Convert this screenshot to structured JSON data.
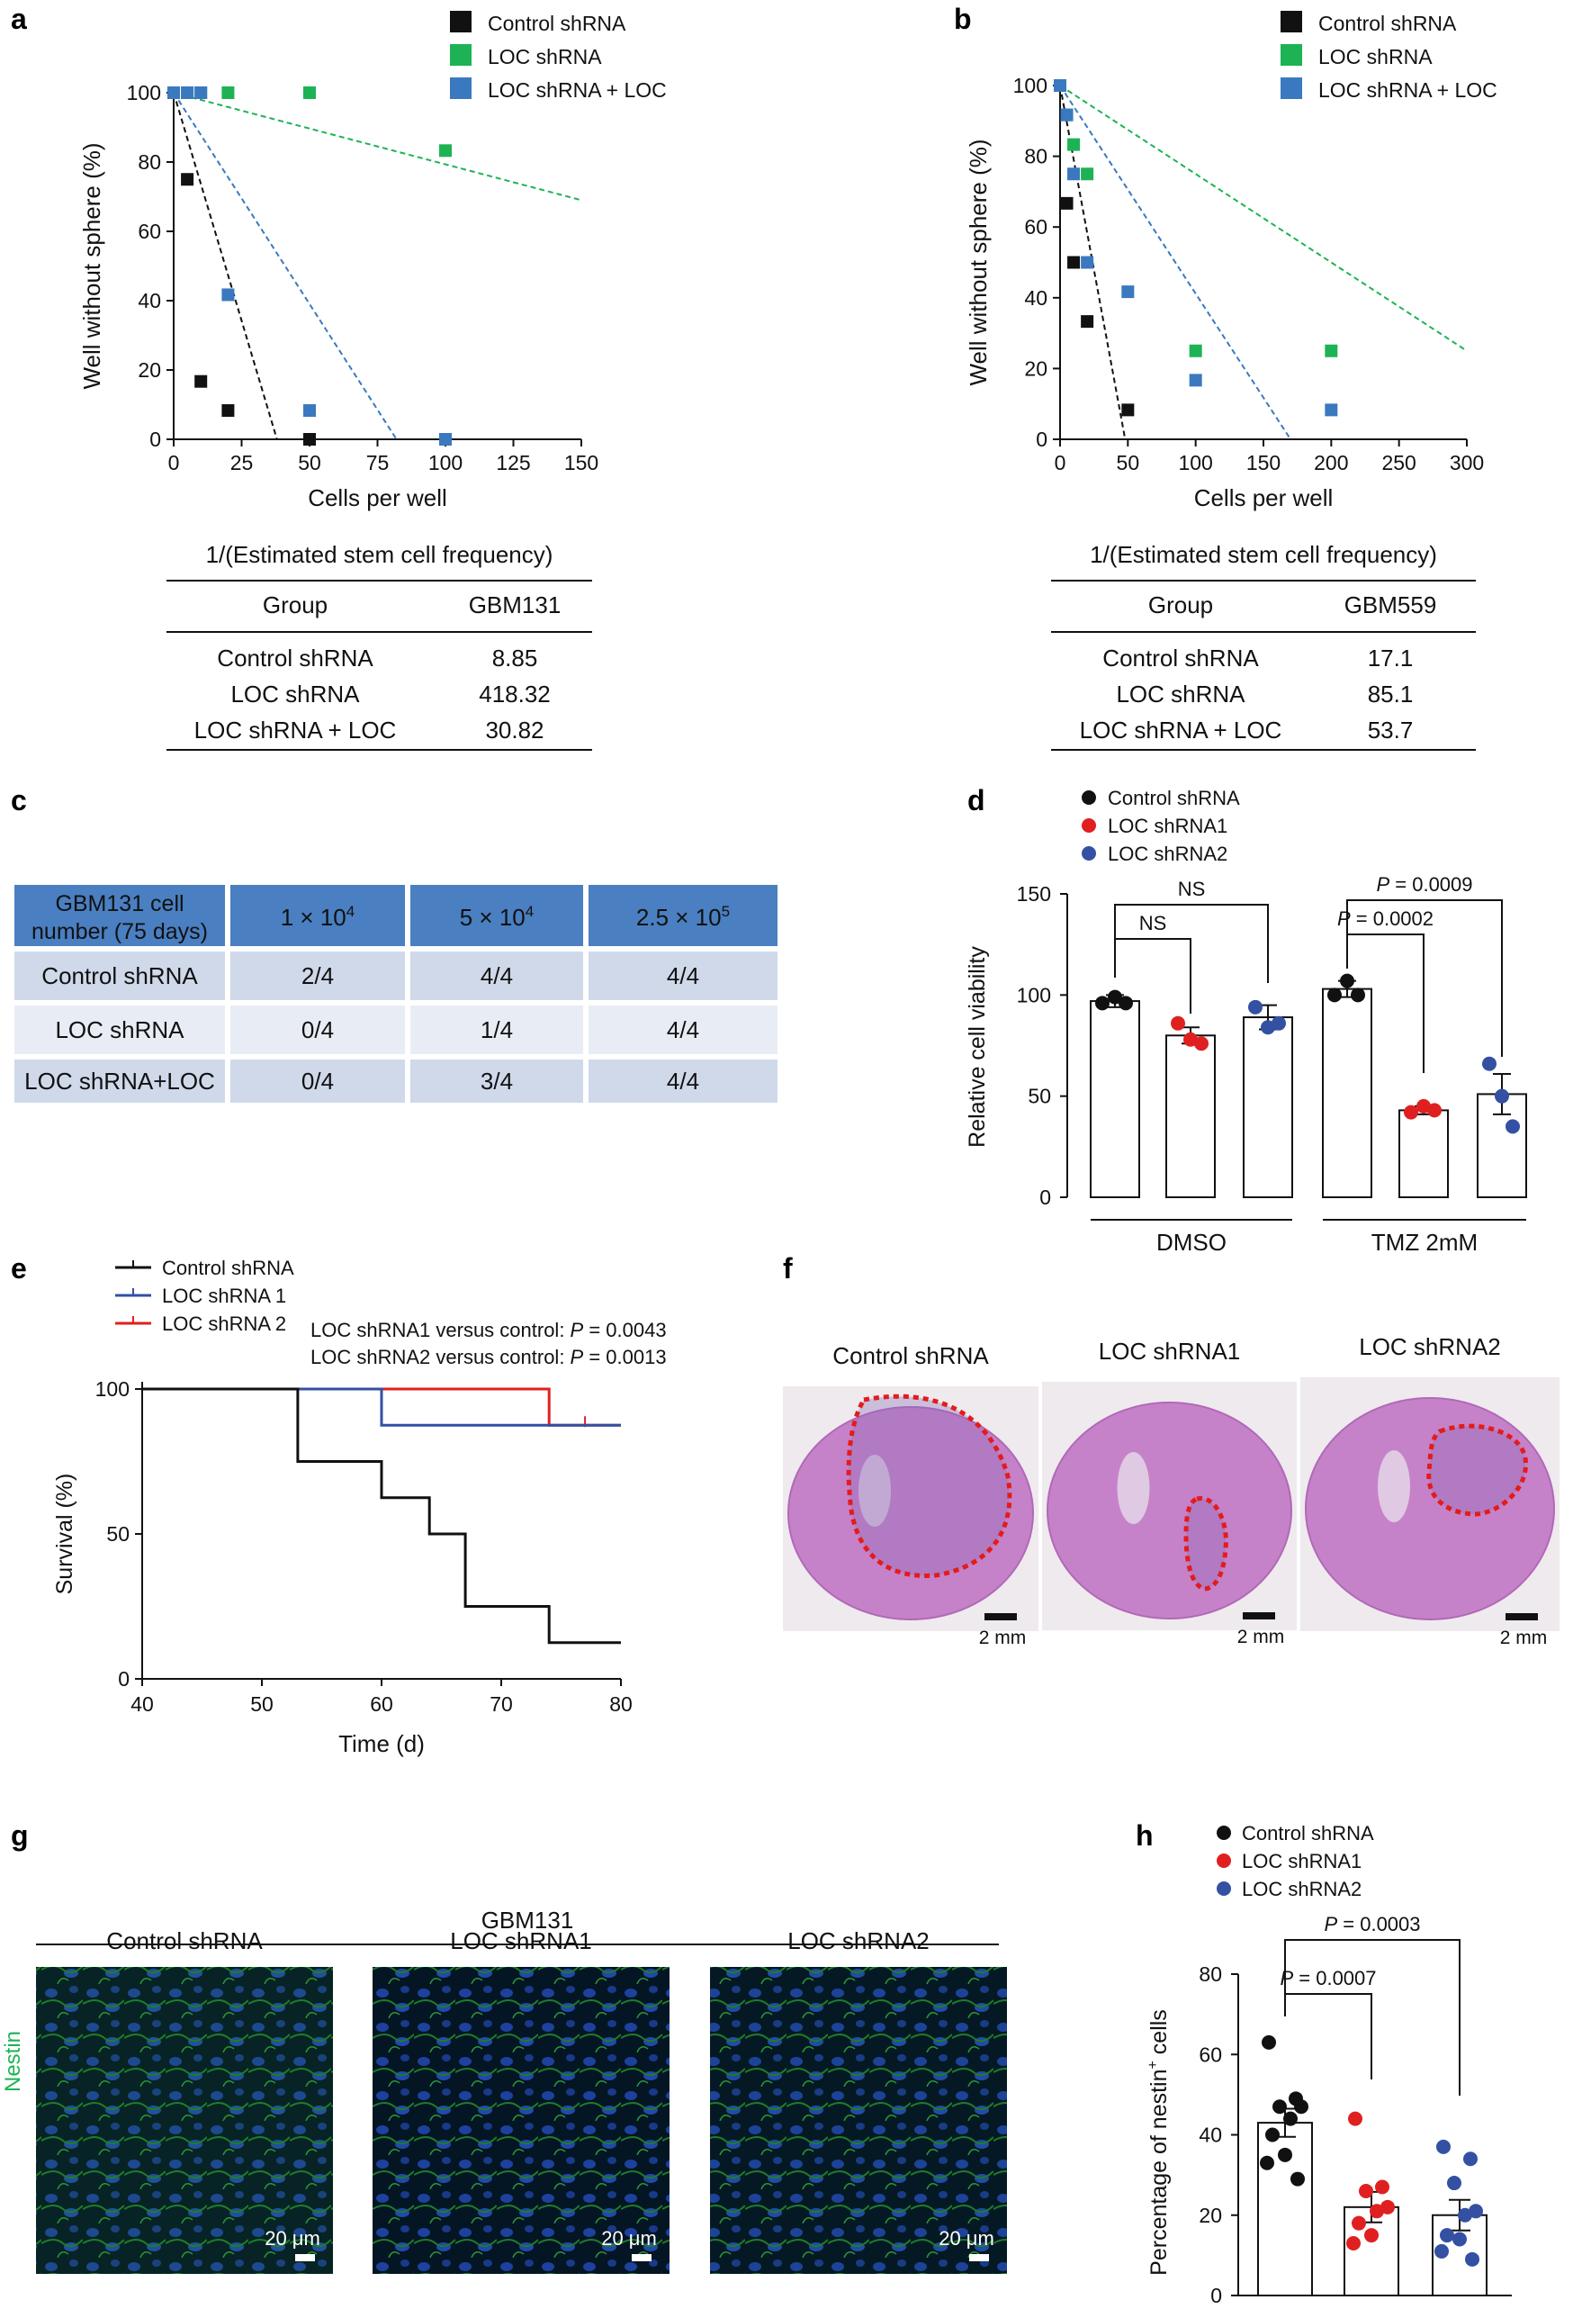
{
  "colors": {
    "black": "#111111",
    "green": "#1db354",
    "blue": "#3a79bf",
    "red": "#e02020",
    "navy": "#3350a3",
    "table_header": "#4a7fc1",
    "table_row_dark": "#cfd9ea",
    "table_row_light": "#e8edf5",
    "hist_fill": "#c874b8",
    "tissue": "#c682c8"
  },
  "panel_labels": {
    "a": "a",
    "b": "b",
    "c": "c",
    "d": "d",
    "e": "e",
    "f": "f",
    "g": "g",
    "h": "h"
  },
  "panel_a": {
    "chart_data": {
      "type": "scatter",
      "xlabel": "Cells per well",
      "ylabel": "Well without sphere (%)",
      "xlim": [
        0,
        150
      ],
      "ylim": [
        0,
        100
      ],
      "xticks": [
        0,
        25,
        50,
        75,
        100,
        125,
        150
      ],
      "yticks": [
        0,
        20,
        40,
        60,
        80,
        100
      ],
      "series": [
        {
          "name": "Control shRNA",
          "color": "#111111",
          "points": [
            [
              0,
              100
            ],
            [
              5,
              75
            ],
            [
              10,
              16.7
            ],
            [
              20,
              8.3
            ],
            [
              50,
              0
            ]
          ],
          "fit": [
            [
              0,
              100
            ],
            [
              38,
              0
            ]
          ]
        },
        {
          "name": "LOC shRNA",
          "color": "#1db354",
          "points": [
            [
              0,
              100
            ],
            [
              5,
              100
            ],
            [
              10,
              100
            ],
            [
              20,
              100
            ],
            [
              50,
              100
            ],
            [
              100,
              83.3
            ]
          ],
          "fit": [
            [
              0,
              100
            ],
            [
              150,
              69
            ]
          ]
        },
        {
          "name": "LOC shRNA + LOC",
          "color": "#3a79bf",
          "points": [
            [
              0,
              100
            ],
            [
              5,
              100
            ],
            [
              10,
              100
            ],
            [
              20,
              41.7
            ],
            [
              50,
              8.3
            ],
            [
              100,
              0
            ]
          ],
          "fit": [
            [
              0,
              100
            ],
            [
              82,
              0
            ]
          ]
        }
      ]
    },
    "table": {
      "title": "1/(Estimated stem cell frequency)",
      "headers": [
        "Group",
        "GBM131"
      ],
      "rows": [
        [
          "Control shRNA",
          "8.85"
        ],
        [
          "LOC shRNA",
          "418.32"
        ],
        [
          "LOC shRNA + LOC",
          "30.82"
        ]
      ]
    }
  },
  "panel_b": {
    "chart_data": {
      "type": "scatter",
      "xlabel": "Cells per well",
      "ylabel": "Well without sphere (%)",
      "xlim": [
        0,
        300
      ],
      "ylim": [
        0,
        100
      ],
      "xticks": [
        0,
        50,
        100,
        150,
        200,
        250,
        300
      ],
      "yticks": [
        0,
        20,
        40,
        60,
        80,
        100
      ],
      "series": [
        {
          "name": "Control shRNA",
          "color": "#111111",
          "points": [
            [
              0,
              100
            ],
            [
              5,
              66.7
            ],
            [
              10,
              50
            ],
            [
              20,
              33.3
            ],
            [
              50,
              8.3
            ]
          ],
          "fit": [
            [
              0,
              100
            ],
            [
              48,
              0
            ]
          ]
        },
        {
          "name": "LOC shRNA",
          "color": "#1db354",
          "points": [
            [
              0,
              100
            ],
            [
              5,
              91.7
            ],
            [
              10,
              83.3
            ],
            [
              20,
              75
            ],
            [
              100,
              25
            ],
            [
              200,
              25
            ]
          ],
          "fit": [
            [
              0,
              100
            ],
            [
              300,
              25
            ]
          ]
        },
        {
          "name": "LOC shRNA + LOC",
          "color": "#3a79bf",
          "points": [
            [
              0,
              100
            ],
            [
              5,
              91.7
            ],
            [
              10,
              75
            ],
            [
              20,
              50
            ],
            [
              50,
              41.7
            ],
            [
              100,
              16.7
            ],
            [
              200,
              8.3
            ]
          ],
          "fit": [
            [
              0,
              100
            ],
            [
              170,
              0
            ]
          ]
        }
      ]
    },
    "table": {
      "title": "1/(Estimated stem cell frequency)",
      "headers": [
        "Group",
        "GBM559"
      ],
      "rows": [
        [
          "Control shRNA",
          "17.1"
        ],
        [
          "LOC shRNA",
          "85.1"
        ],
        [
          "LOC shRNA + LOC",
          "53.7"
        ]
      ]
    }
  },
  "panel_c": {
    "header_line1": "GBM131 cell",
    "header_line2": "number (75 days)",
    "columns": [
      {
        "mant": "1 × 10",
        "exp": "4"
      },
      {
        "mant": "5 × 10",
        "exp": "4"
      },
      {
        "mant": "2.5 × 10",
        "exp": "5"
      }
    ],
    "rows": [
      {
        "label": "Control shRNA",
        "values": [
          "2/4",
          "4/4",
          "4/4"
        ]
      },
      {
        "label": "LOC shRNA",
        "values": [
          "0/4",
          "1/4",
          "4/4"
        ]
      },
      {
        "label": "LOC shRNA+LOC",
        "values": [
          "0/4",
          "3/4",
          "4/4"
        ]
      }
    ]
  },
  "panel_d": {
    "chart_data": {
      "type": "bar",
      "ylabel": "Relative cell viability",
      "ylim": [
        0,
        150
      ],
      "yticks": [
        0,
        50,
        100,
        150
      ],
      "groups": [
        "DMSO",
        "TMZ 2mM"
      ],
      "series": [
        {
          "name": "Control shRNA",
          "color": "#111111",
          "values": [
            97,
            103
          ],
          "errors": [
            3,
            4
          ],
          "points": [
            [
              96,
              99,
              96
            ],
            [
              100,
              107,
              100
            ]
          ]
        },
        {
          "name": "LOC shRNA1",
          "color": "#e02020",
          "values": [
            80,
            43
          ],
          "errors": [
            4,
            2
          ],
          "points": [
            [
              86,
              78,
              76
            ],
            [
              42,
              45,
              43
            ]
          ]
        },
        {
          "name": "LOC shRNA2",
          "color": "#3350a3",
          "values": [
            89,
            51
          ],
          "errors": [
            6,
            10
          ],
          "points": [
            [
              94,
              84,
              86
            ],
            [
              66,
              50,
              35
            ]
          ]
        }
      ],
      "annotations": [
        {
          "text": "NS",
          "from": "DMSO Control shRNA",
          "to": "DMSO LOC shRNA1"
        },
        {
          "text": "NS",
          "from": "DMSO Control shRNA",
          "to": "DMSO LOC shRNA2"
        },
        {
          "text": "= 0.0002",
          "p": "P",
          "from": "TMZ Control shRNA",
          "to": "TMZ LOC shRNA1"
        },
        {
          "text": "= 0.0009",
          "p": "P",
          "from": "TMZ Control shRNA",
          "to": "TMZ LOC shRNA2"
        }
      ]
    }
  },
  "panel_e": {
    "chart_data": {
      "type": "line",
      "xlabel": "Time (d)",
      "ylabel": "Survival (%)",
      "xlim": [
        40,
        80
      ],
      "ylim": [
        0,
        100
      ],
      "xticks": [
        40,
        50,
        60,
        70,
        80
      ],
      "yticks": [
        0,
        50,
        100
      ],
      "series": [
        {
          "name": "Control shRNA",
          "color": "#111111",
          "steps": [
            [
              40,
              100
            ],
            [
              53,
              100
            ],
            [
              53,
              75
            ],
            [
              60,
              75
            ],
            [
              60,
              62.5
            ],
            [
              64,
              62.5
            ],
            [
              64,
              50
            ],
            [
              67,
              50
            ],
            [
              67,
              25
            ],
            [
              74,
              25
            ],
            [
              74,
              12.5
            ],
            [
              80,
              12.5
            ]
          ]
        },
        {
          "name": "LOC shRNA 1",
          "color": "#3350a3",
          "steps": [
            [
              40,
              100
            ],
            [
              60,
              100
            ],
            [
              60,
              87.5
            ],
            [
              80,
              87.5
            ]
          ]
        },
        {
          "name": "LOC shRNA 2",
          "color": "#e02020",
          "steps": [
            [
              40,
              100
            ],
            [
              74,
              100
            ],
            [
              74,
              87.5
            ],
            [
              80,
              87.5
            ]
          ],
          "censor": [
            77,
            87.5
          ]
        }
      ],
      "annotations": [
        {
          "prefix": "LOC shRNA1 versus control: ",
          "p": "P",
          "value": " = 0.0043"
        },
        {
          "prefix": "LOC shRNA2 versus control: ",
          "p": "P",
          "value": " = 0.0013"
        }
      ]
    }
  },
  "panel_f": {
    "titles": [
      "Control shRNA",
      "LOC shRNA1",
      "LOC shRNA2"
    ],
    "scale": "2 mm"
  },
  "panel_g": {
    "group": "GBM131",
    "titles": [
      "Control shRNA",
      "LOC shRNA1",
      "LOC shRNA2"
    ],
    "stain": "Nestin",
    "scale": "20 μm"
  },
  "panel_h": {
    "chart_data": {
      "type": "bar",
      "ylabel_main": "Percentage of nestin",
      "ylabel_sup": "+",
      "ylabel_end": " cells",
      "ylim": [
        0,
        80
      ],
      "yticks": [
        0,
        20,
        40,
        60,
        80
      ],
      "series": [
        {
          "name": "Control shRNA",
          "color": "#111111",
          "value": 43,
          "error": 3.5,
          "points": [
            63,
            49,
            47,
            47,
            44,
            40,
            35,
            33,
            29
          ]
        },
        {
          "name": "LOC shRNA1",
          "color": "#e02020",
          "value": 22,
          "error": 3.8,
          "points": [
            44,
            27,
            26,
            22,
            21,
            18,
            15,
            13
          ]
        },
        {
          "name": "LOC shRNA2",
          "color": "#3350a3",
          "value": 20,
          "error": 3.8,
          "points": [
            37,
            34,
            28,
            21,
            20,
            15,
            14,
            11,
            9
          ]
        }
      ],
      "annotations": [
        {
          "p": "P",
          "text": " = 0.0007",
          "from": "Control shRNA",
          "to": "LOC shRNA1"
        },
        {
          "p": "P",
          "text": " = 0.0003",
          "from": "Control shRNA",
          "to": "LOC shRNA2"
        }
      ]
    }
  }
}
